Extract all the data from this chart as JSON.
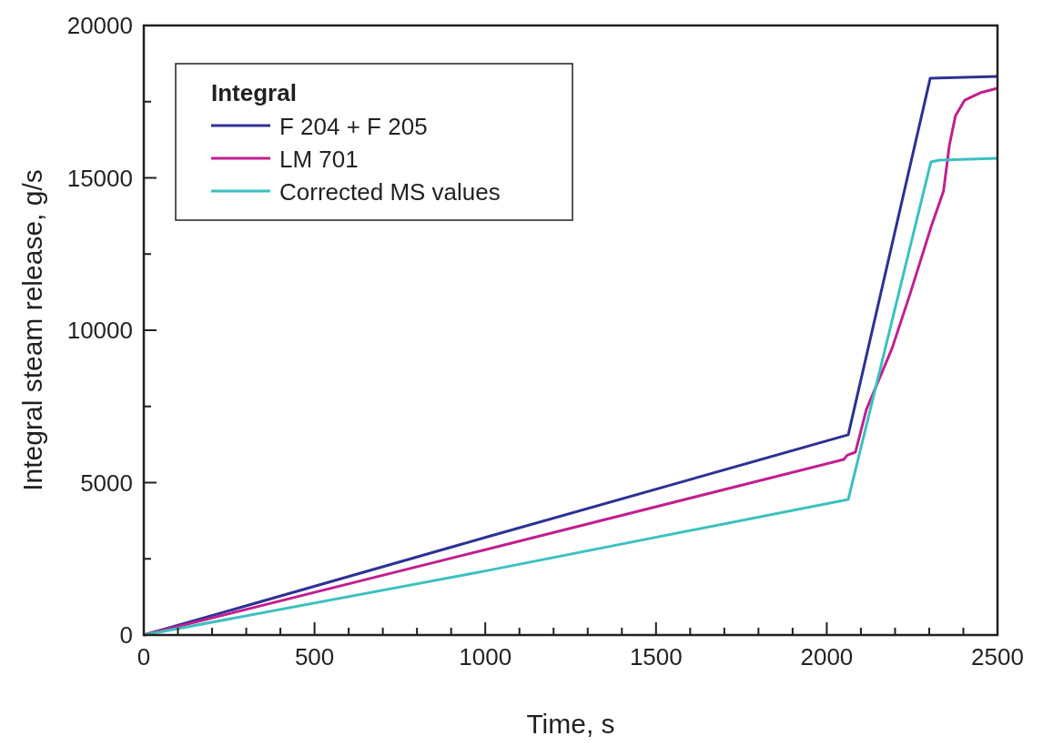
{
  "chart_data": {
    "type": "line",
    "xlabel": "Time, s",
    "ylabel": "Integral steam release, g/s",
    "legend_title": "Integral",
    "legend": "top left",
    "grid": false,
    "line_style": "solid",
    "xlim": [
      0,
      2500
    ],
    "ylim": [
      0,
      20000
    ],
    "xticks": [
      0,
      {
        "value": 100,
        "label": null
      },
      {
        "value": 200,
        "label": null
      },
      {
        "value": 300,
        "label": null
      },
      {
        "value": 400,
        "label": null
      },
      500,
      {
        "value": 600,
        "label": null
      },
      {
        "value": 700,
        "label": null
      },
      {
        "value": 800,
        "label": null
      },
      {
        "value": 900,
        "label": null
      },
      1000,
      {
        "value": 1100,
        "label": null
      },
      {
        "value": 1200,
        "label": null
      },
      {
        "value": 1300,
        "label": null
      },
      {
        "value": 1400,
        "label": null
      },
      1500,
      {
        "value": 1600,
        "label": null
      },
      {
        "value": 1700,
        "label": null
      },
      {
        "value": 1800,
        "label": null
      },
      {
        "value": 1900,
        "label": null
      },
      2000,
      {
        "value": 2100,
        "label": null
      },
      {
        "value": 2200,
        "label": null
      },
      {
        "value": 2300,
        "label": null
      },
      {
        "value": 2400,
        "label": null
      },
      2500
    ],
    "yticks": [
      0,
      {
        "value": 2500,
        "label": null
      },
      5000,
      {
        "value": 7500,
        "label": null
      },
      10000,
      {
        "value": 12500,
        "label": null
      },
      15000,
      {
        "value": 17500,
        "label": null
      },
      20000
    ],
    "series": [
      {
        "name": "F 204 + F 205",
        "color": "#2e3192",
        "x": [
          0,
          1000,
          2063,
          2303,
          2500
        ],
        "values": [
          0,
          3200,
          6570,
          18270,
          18330
        ]
      },
      {
        "name": "LM 701",
        "color": "#c0208f",
        "x": [
          0,
          1000,
          2050,
          2060,
          2084,
          2116,
          2191,
          2244,
          2305,
          2342,
          2359,
          2377,
          2404,
          2449,
          2500
        ],
        "values": [
          0,
          2800,
          5760,
          5900,
          6000,
          7400,
          9400,
          11190,
          13370,
          14570,
          16060,
          17040,
          17550,
          17790,
          17940
        ]
      },
      {
        "name": "Corrected MS values",
        "color": "#3cc0c0",
        "x": [
          0,
          1000,
          2063,
          2305,
          2330,
          2500
        ],
        "values": [
          0,
          2100,
          4450,
          15520,
          15580,
          15640
        ]
      }
    ]
  }
}
